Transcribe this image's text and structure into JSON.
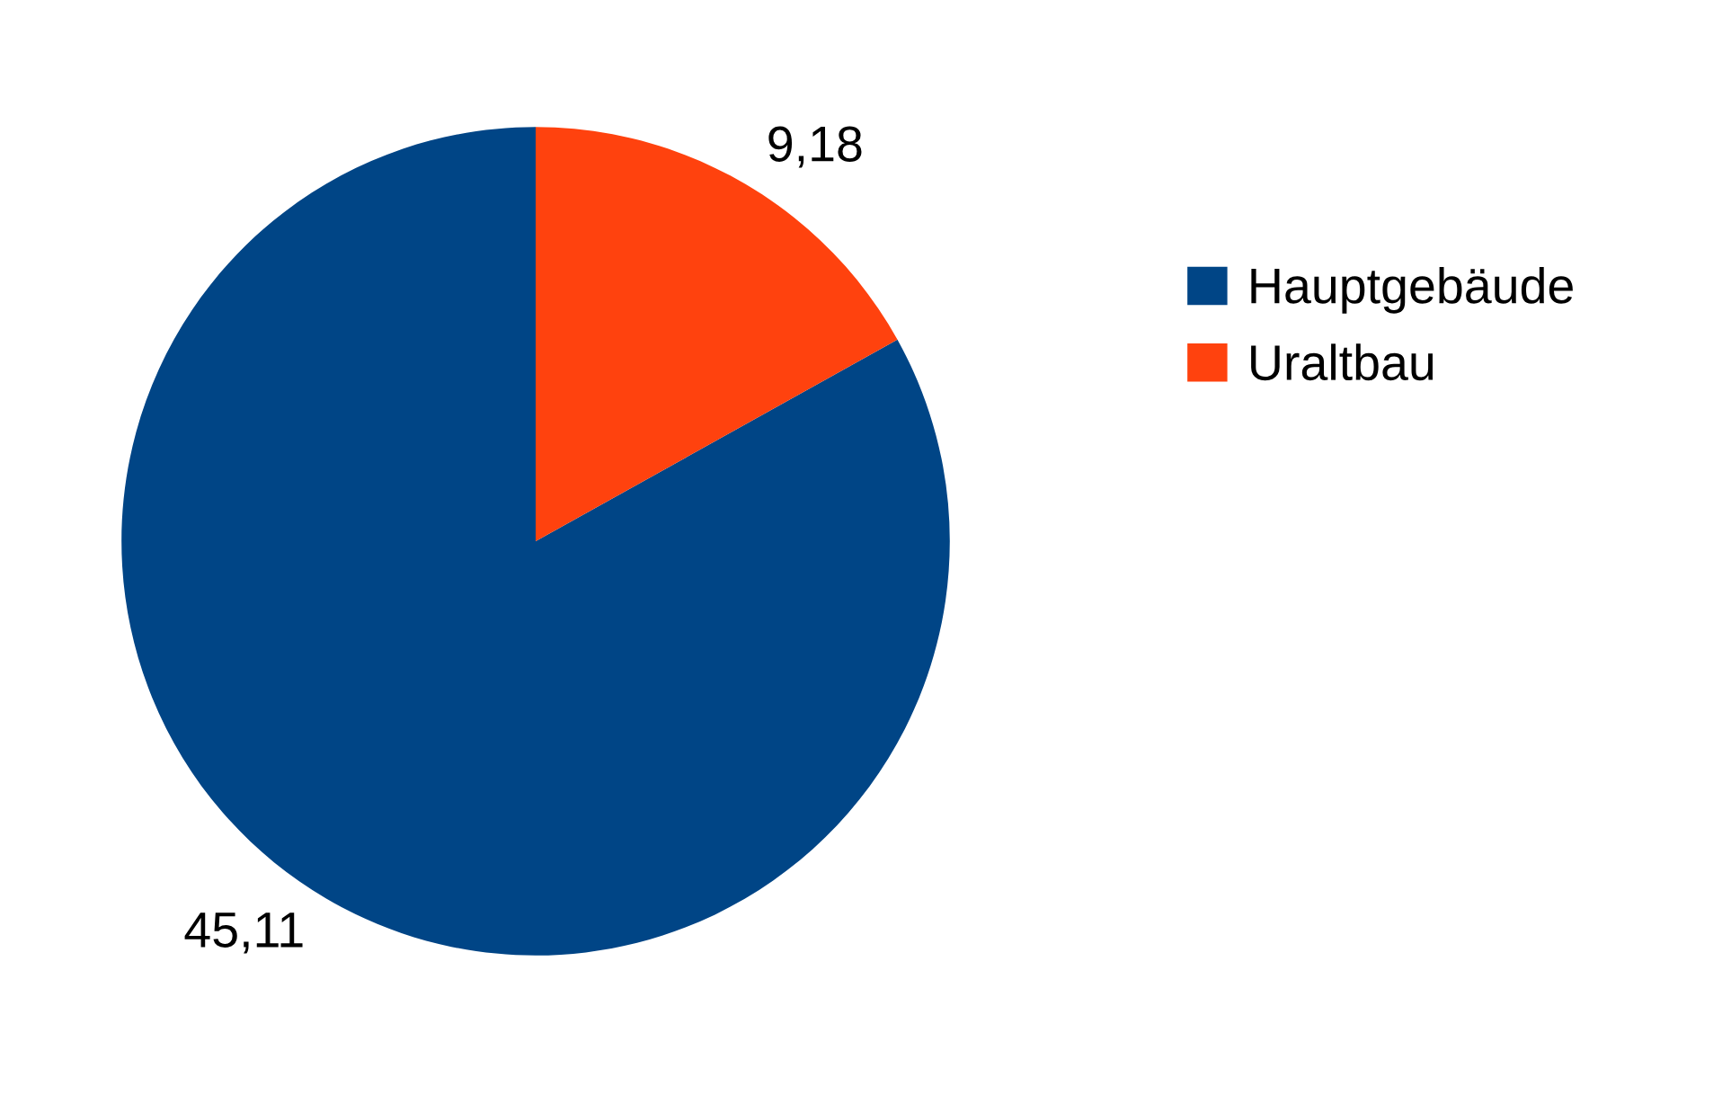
{
  "chart_data": {
    "type": "pie",
    "categories": [
      "Hauptgebäude",
      "Uraltbau"
    ],
    "values": [
      45.11,
      9.18
    ],
    "value_labels": [
      "45,11",
      "9,18"
    ],
    "colors": [
      "#004586",
      "#ff420e"
    ],
    "legend": "right"
  }
}
